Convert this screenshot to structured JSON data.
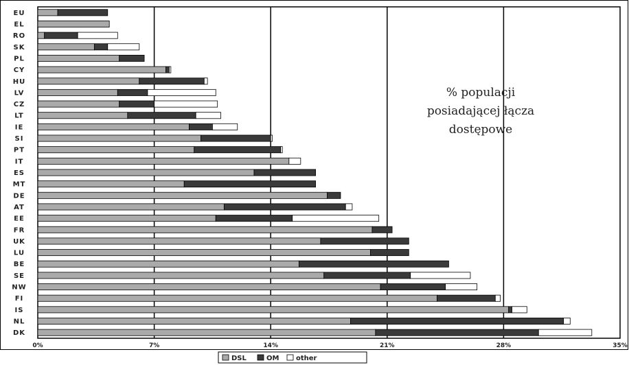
{
  "chart_data": {
    "type": "bar",
    "orientation": "horizontal",
    "stacked": true,
    "title": "",
    "annotation": [
      "% populacji",
      "posiadającej łącza",
      "dostępowe"
    ],
    "categories": [
      "EU",
      "EL",
      "RO",
      "SK",
      "PL",
      "CY",
      "HU",
      "LV",
      "CZ",
      "LT",
      "IE",
      "SI",
      "PT",
      "IT",
      "ES",
      "MT",
      "DE",
      "AT",
      "EE",
      "FR",
      "UK",
      "LU",
      "BE",
      "SE",
      "NW",
      "FI",
      "IS",
      "NL",
      "DK"
    ],
    "series": [
      {
        "name": "DSL",
        "color": "#aaaaaa",
        "values": [
          1.2,
          4.3,
          0.4,
          3.4,
          4.9,
          7.7,
          6.1,
          4.8,
          4.9,
          5.4,
          9.1,
          9.8,
          9.4,
          15.1,
          13.0,
          8.8,
          17.4,
          11.2,
          10.7,
          20.1,
          17.0,
          20.0,
          15.7,
          17.2,
          20.6,
          24.0,
          28.3,
          18.8,
          20.3
        ]
      },
      {
        "name": "OM",
        "color": "#3a3a3a",
        "values": [
          3.0,
          0,
          2.0,
          0.8,
          1.5,
          0.2,
          3.9,
          1.8,
          2.1,
          4.1,
          1.4,
          4.2,
          5.2,
          0,
          3.7,
          7.9,
          0.8,
          7.3,
          4.6,
          1.2,
          5.3,
          2.3,
          9.0,
          5.2,
          3.9,
          3.5,
          0.2,
          12.8,
          9.8
        ]
      },
      {
        "name": "other",
        "color": "#ffffff",
        "values": [
          0,
          0,
          2.4,
          1.9,
          0,
          0.1,
          0.2,
          4.1,
          3.8,
          1.5,
          1.5,
          0.1,
          0.1,
          0.7,
          0,
          0,
          0,
          0.4,
          5.2,
          0,
          0,
          0,
          0,
          3.6,
          1.9,
          0.3,
          0.9,
          0.4,
          3.2
        ]
      }
    ],
    "x_ticks": [
      "0%",
      "7%",
      "14%",
      "21%",
      "28%",
      "35%"
    ],
    "xlim": [
      0,
      35
    ],
    "grid": true,
    "legend": [
      "DSL",
      "OM",
      "other"
    ],
    "legend_position": "bottom"
  }
}
